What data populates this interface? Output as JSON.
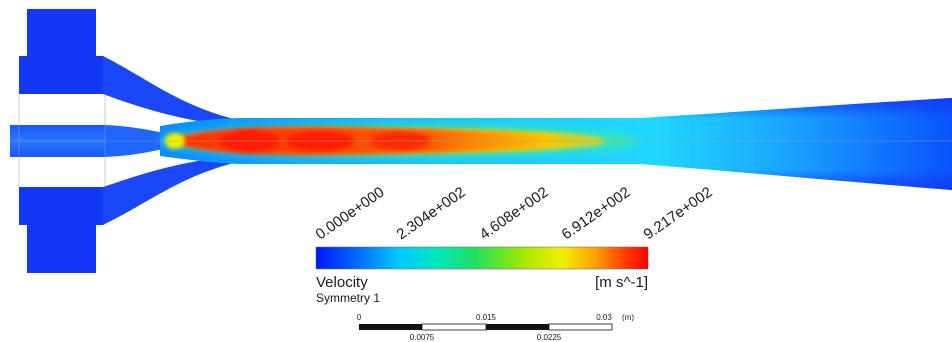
{
  "legend": {
    "variable": "Velocity",
    "location": "Symmetry 1",
    "units": "[m s^-1]",
    "ticks": [
      "0.000e+000",
      "2.304e+002",
      "4.608e+002",
      "6.912e+002",
      "9.217e+002"
    ],
    "colormap": [
      "#0018ff",
      "#0068ff",
      "#00c8ff",
      "#00e8c0",
      "#20e060",
      "#a0e800",
      "#f0f000",
      "#ffa000",
      "#ff4000",
      "#ff0000"
    ]
  },
  "scale_bar": {
    "top_labels": [
      "0",
      "0.015",
      "0.03",
      "(m)"
    ],
    "bottom_labels": [
      "0.0075",
      "0.0225"
    ]
  },
  "colors": {
    "solid_blue": "#1238f5",
    "core_hot": "#ff2a00",
    "core_warm": "#ffd000",
    "cyan": "#00c8ff"
  }
}
